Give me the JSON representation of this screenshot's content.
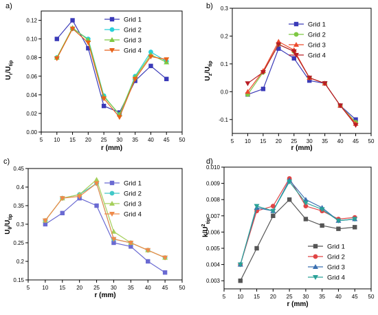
{
  "chart_data": [
    {
      "type": "line",
      "panel_label": "a)",
      "xlabel": "r (mm)",
      "ylabel_main": "U",
      "ylabel_sub1": "r",
      "ylabel_mid": "/U",
      "ylabel_sub2": "tip",
      "xlim": [
        5,
        50
      ],
      "ylim": [
        0,
        0.13
      ],
      "xticks": [
        5,
        10,
        15,
        20,
        25,
        30,
        35,
        40,
        45,
        50
      ],
      "yticks": [
        0.0,
        0.02,
        0.04,
        0.06,
        0.08,
        0.1,
        0.12
      ],
      "ytick_labels": [
        "0.00",
        "0.02",
        "0.04",
        "0.06",
        "0.08",
        "0.10",
        "0.12"
      ],
      "legend_placement": "top-right",
      "x": [
        10,
        15,
        20,
        25,
        30,
        35,
        40,
        45
      ],
      "series": [
        {
          "name": "Grid 1",
          "color": "#3a3ab8",
          "marker": "square",
          "values": [
            0.1,
            0.12,
            0.09,
            0.028,
            0.021,
            0.055,
            0.071,
            0.057
          ]
        },
        {
          "name": "Grid 2",
          "color": "#29d0d8",
          "marker": "circle",
          "values": [
            0.08,
            0.111,
            0.1,
            0.039,
            0.018,
            0.06,
            0.086,
            0.076
          ]
        },
        {
          "name": "Grid 3",
          "color": "#7ec843",
          "marker": "triangle-up",
          "values": [
            0.08,
            0.112,
            0.099,
            0.038,
            0.019,
            0.059,
            0.083,
            0.075
          ]
        },
        {
          "name": "Grid 4",
          "color": "#e8621a",
          "marker": "triangle-down",
          "values": [
            0.079,
            0.111,
            0.096,
            0.036,
            0.016,
            0.057,
            0.081,
            0.078
          ]
        }
      ]
    },
    {
      "type": "line",
      "panel_label": "b)",
      "xlabel": "r (mm)",
      "ylabel_main": "U",
      "ylabel_sub1": "z",
      "ylabel_mid": "/U",
      "ylabel_sub2": "tip",
      "xlim": [
        5,
        50
      ],
      "ylim": [
        -0.15,
        0.3
      ],
      "xticks": [
        5,
        10,
        15,
        20,
        25,
        30,
        35,
        40,
        45,
        50
      ],
      "yticks": [
        -0.1,
        0.0,
        0.1,
        0.2,
        0.3
      ],
      "ytick_labels": [
        "-0.1",
        "0.0",
        "0.1",
        "0.2",
        "0.3"
      ],
      "legend_placement": "top-right",
      "x": [
        10,
        15,
        20,
        25,
        30,
        35,
        40,
        45
      ],
      "series": [
        {
          "name": "Grid 1",
          "color": "#3a3ab8",
          "marker": "square",
          "values": [
            -0.01,
            0.01,
            0.155,
            0.12,
            0.04,
            0.03,
            -0.05,
            -0.1
          ]
        },
        {
          "name": "Grid 2",
          "color": "#7ec843",
          "marker": "circle",
          "values": [
            -0.01,
            0.07,
            0.17,
            0.145,
            0.05,
            0.03,
            -0.05,
            -0.11
          ]
        },
        {
          "name": "Grid 3",
          "color": "#ee4a2c",
          "marker": "triangle-up",
          "values": [
            0.0,
            0.075,
            0.18,
            0.15,
            0.05,
            0.03,
            -0.05,
            -0.115
          ]
        },
        {
          "name": "Grid 4",
          "color": "#b81d25",
          "marker": "triangle-down",
          "values": [
            0.03,
            0.07,
            0.17,
            0.145,
            0.05,
            0.03,
            -0.05,
            -0.12
          ]
        }
      ]
    },
    {
      "type": "line",
      "panel_label": "c)",
      "xlabel": "r (mm)",
      "ylabel_main": "U",
      "ylabel_sub1": "θ",
      "ylabel_mid": "/U",
      "ylabel_sub2": "tip",
      "xlim": [
        5,
        50
      ],
      "ylim": [
        0.15,
        0.45
      ],
      "xticks": [
        5,
        10,
        15,
        20,
        25,
        30,
        35,
        40,
        45,
        50
      ],
      "yticks": [
        0.15,
        0.2,
        0.25,
        0.3,
        0.35,
        0.4,
        0.45
      ],
      "ytick_labels": [
        "0.15",
        "0.2",
        "0.25",
        "0.3",
        "0.35",
        "0.4",
        "0.45"
      ],
      "legend_placement": "top-right",
      "x": [
        10,
        15,
        20,
        25,
        30,
        35,
        40,
        45
      ],
      "series": [
        {
          "name": "Grid 1",
          "color": "#6a6ad2",
          "marker": "square",
          "values": [
            0.3,
            0.33,
            0.37,
            0.35,
            0.25,
            0.24,
            0.2,
            0.17
          ]
        },
        {
          "name": "Grid 2",
          "color": "#41c8c8",
          "marker": "circle",
          "values": [
            0.31,
            0.37,
            0.38,
            0.41,
            0.26,
            0.25,
            0.23,
            0.21
          ]
        },
        {
          "name": "Grid 3",
          "color": "#a5cf5a",
          "marker": "triangle-up",
          "values": [
            0.31,
            0.37,
            0.38,
            0.42,
            0.28,
            0.25,
            0.23,
            0.21
          ]
        },
        {
          "name": "Grid 4",
          "color": "#ef8a4a",
          "marker": "triangle-down",
          "values": [
            0.31,
            0.37,
            0.375,
            0.41,
            0.26,
            0.25,
            0.23,
            0.21
          ]
        }
      ]
    },
    {
      "type": "line",
      "panel_label": "d)",
      "xlabel": "r (mm)",
      "ylabel_main": "k/U",
      "ylabel_sup": "2",
      "ylabel_sub2": "tip",
      "xlim": [
        5,
        50
      ],
      "ylim": [
        0.0025,
        0.01
      ],
      "xticks": [
        5,
        10,
        15,
        20,
        25,
        30,
        35,
        40,
        45,
        50
      ],
      "yticks": [
        0.003,
        0.004,
        0.005,
        0.006,
        0.007,
        0.008,
        0.009,
        0.01
      ],
      "ytick_labels": [
        "0.003",
        "0.004",
        "0.005",
        "0.006",
        "0.007",
        "0.008",
        "0.009",
        "0.010"
      ],
      "legend_placement": "bottom-right",
      "x": [
        10,
        15,
        20,
        25,
        30,
        35,
        40,
        45
      ],
      "series": [
        {
          "name": "Grid 1",
          "color": "#555555",
          "marker": "square",
          "values": [
            0.003,
            0.005,
            0.007,
            0.008,
            0.0068,
            0.0064,
            0.0062,
            0.0063
          ]
        },
        {
          "name": "Grid 2",
          "color": "#e04545",
          "marker": "circle",
          "values": [
            0.004,
            0.0073,
            0.0076,
            0.0093,
            0.0076,
            0.0073,
            0.0068,
            0.0069
          ]
        },
        {
          "name": "Grid 3",
          "color": "#3a6fb0",
          "marker": "triangle-up",
          "values": [
            0.004,
            0.0075,
            0.0073,
            0.0092,
            0.008,
            0.0075,
            0.0067,
            0.0068
          ]
        },
        {
          "name": "Grid 4",
          "color": "#2aa198",
          "marker": "triangle-down",
          "values": [
            0.004,
            0.0076,
            0.0073,
            0.0091,
            0.0078,
            0.0074,
            0.0067,
            0.0068
          ]
        }
      ]
    }
  ]
}
